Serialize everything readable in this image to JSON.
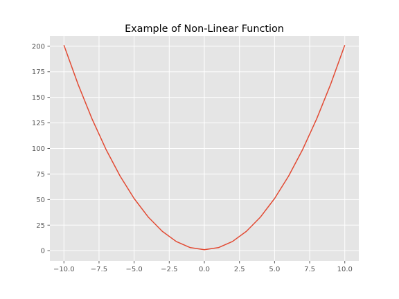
{
  "chart_data": {
    "type": "line",
    "title": "Example of Non-Linear Function",
    "xlabel": "",
    "ylabel": "",
    "xlim": [
      -11.0,
      11.0
    ],
    "ylim": [
      -10.0,
      210.0
    ],
    "grid": true,
    "legend": "none",
    "x_ticks": [
      -10.0,
      -7.5,
      -5.0,
      -2.5,
      0.0,
      2.5,
      5.0,
      7.5,
      10.0
    ],
    "x_tick_labels": [
      "−10.0",
      "−7.5",
      "−5.0",
      "−2.5",
      "0.0",
      "2.5",
      "5.0",
      "7.5",
      "10.0"
    ],
    "y_ticks": [
      0,
      25,
      50,
      75,
      100,
      125,
      150,
      175,
      200
    ],
    "y_tick_labels": [
      "0",
      "25",
      "50",
      "75",
      "100",
      "125",
      "150",
      "175",
      "200"
    ],
    "series": [
      {
        "color": "#E24A33",
        "x": [
          -10,
          -9,
          -8,
          -7,
          -6,
          -5,
          -4,
          -3,
          -2,
          -1,
          0,
          1,
          2,
          3,
          4,
          5,
          6,
          7,
          8,
          9,
          10
        ],
        "y": [
          201,
          163,
          129,
          99,
          73,
          51,
          33,
          19,
          9,
          3,
          1,
          3,
          9,
          19,
          33,
          51,
          73,
          99,
          129,
          163,
          201
        ]
      }
    ],
    "colors": {
      "plot_background": "#E5E5E5",
      "grid": "#FFFFFF",
      "tick_label": "#555555"
    }
  }
}
